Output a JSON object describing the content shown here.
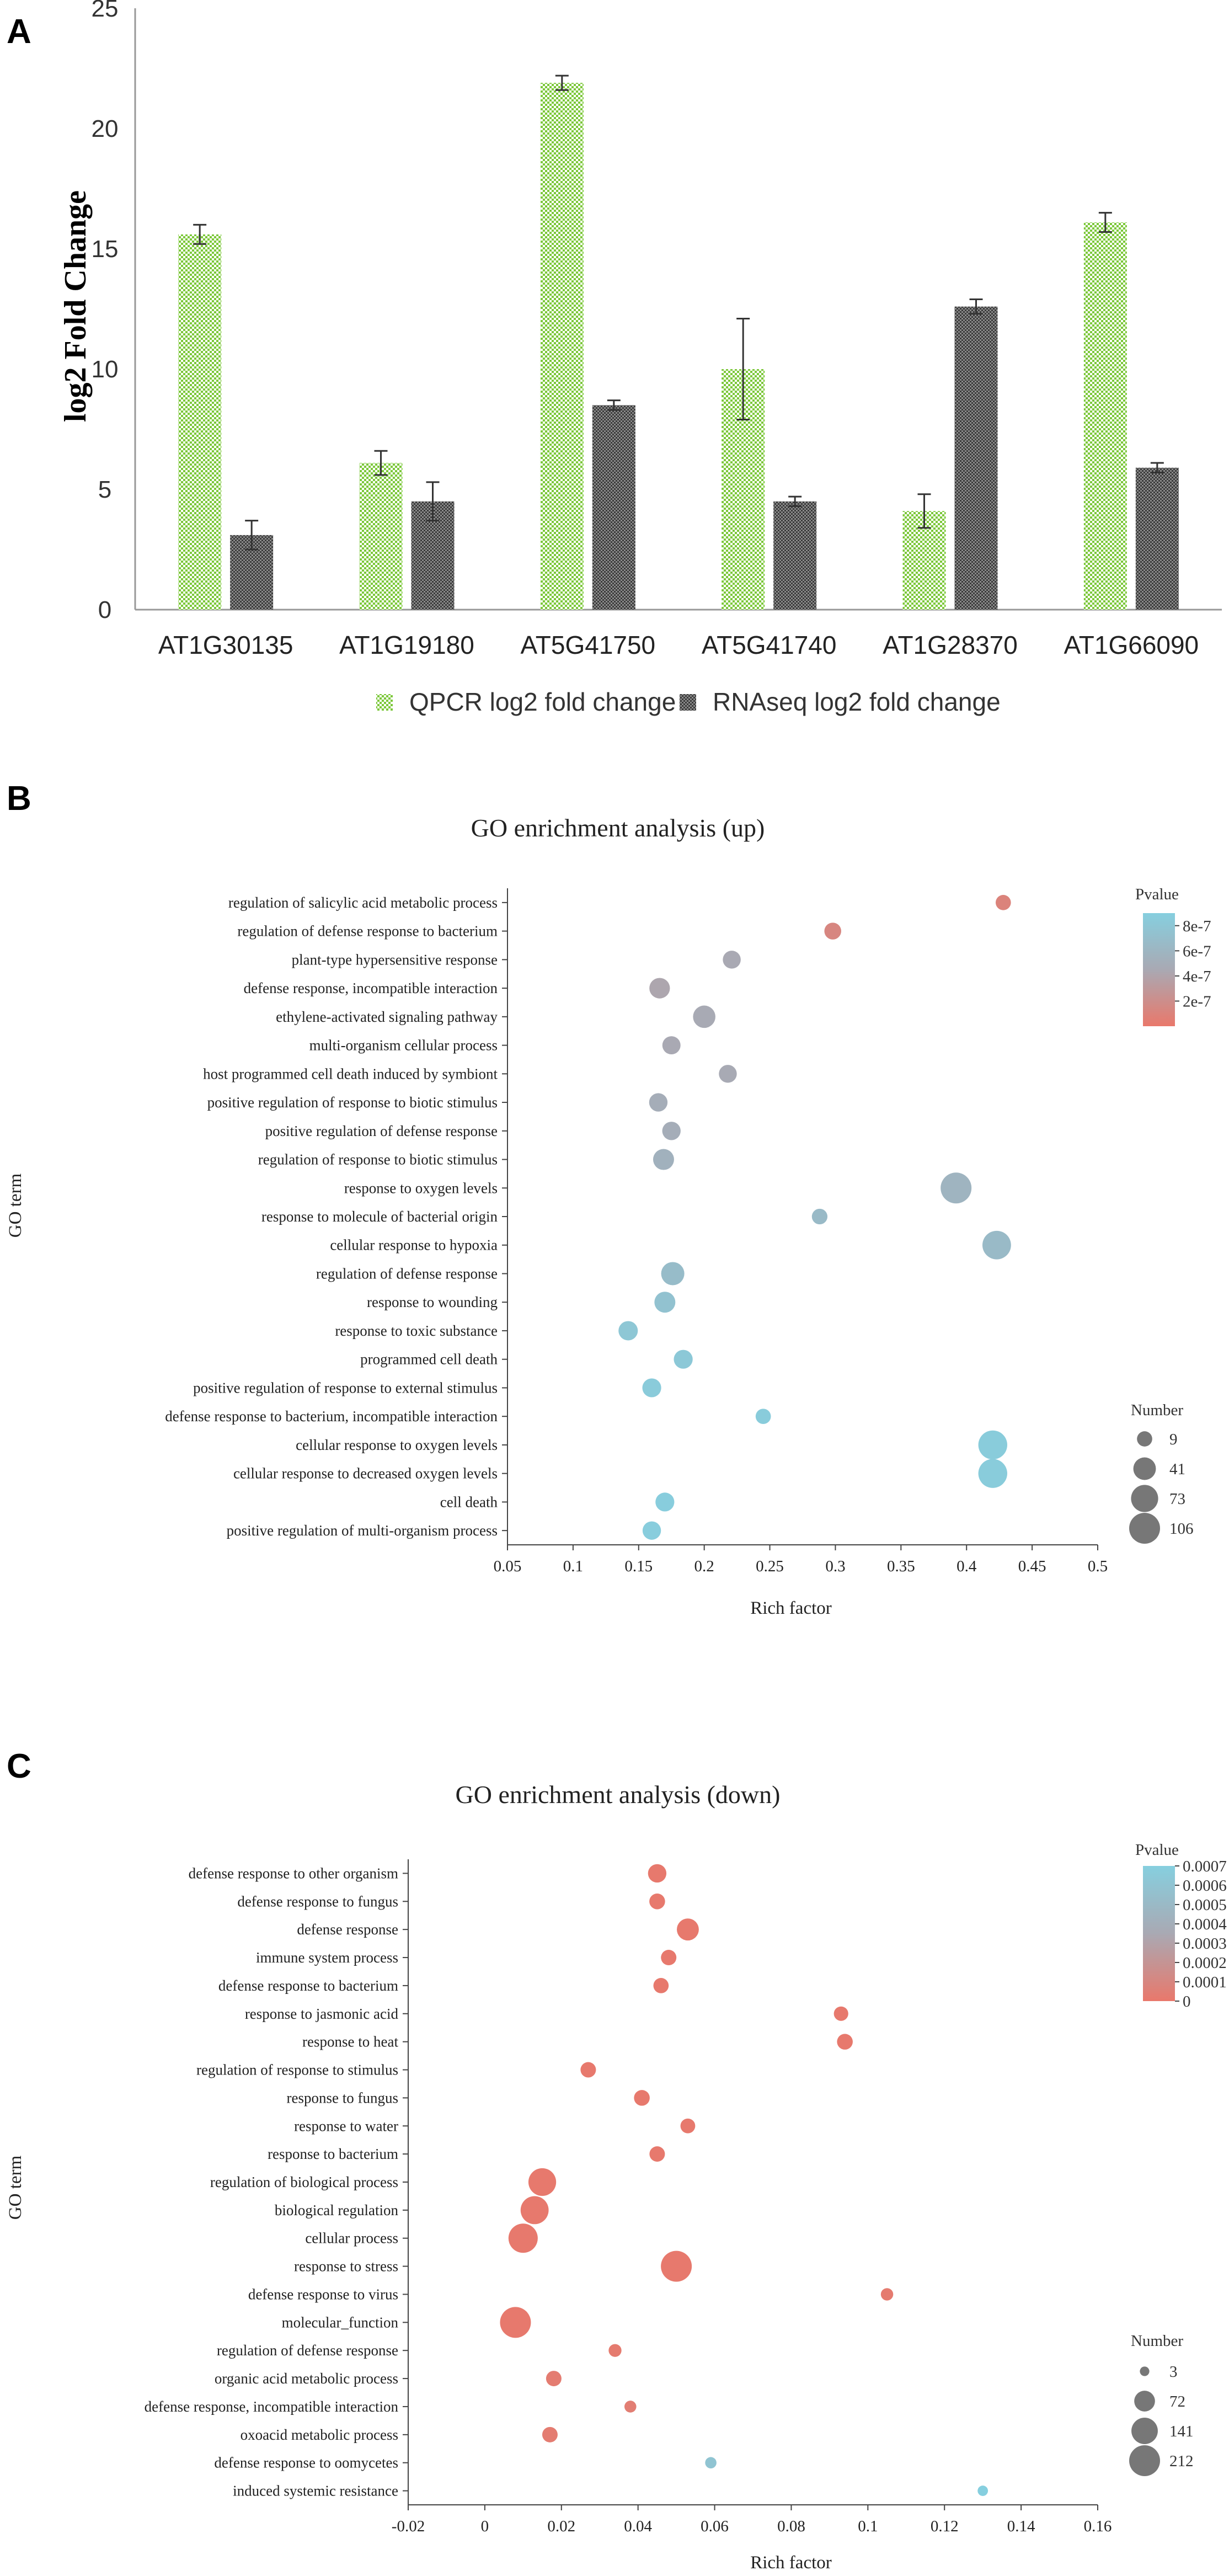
{
  "chart_data": [
    {
      "panel": "A",
      "type": "bar",
      "title": "",
      "ylabel": "log2 Fold Change",
      "xlabel": "",
      "ylim": [
        0,
        25
      ],
      "yticks": [
        0,
        5,
        10,
        15,
        20,
        25
      ],
      "categories": [
        "AT1G30135",
        "AT1G19180",
        "AT5G41750",
        "AT5G41740",
        "AT1G28370",
        "AT1G66090"
      ],
      "series": [
        {
          "name": "QPCR log2 fold change",
          "color": "#8fd14f",
          "values": [
            15.6,
            6.1,
            21.9,
            10.0,
            4.1,
            16.1
          ],
          "errors": [
            0.4,
            0.5,
            0.3,
            2.1,
            0.7,
            0.4
          ]
        },
        {
          "name": "RNAseq log2 fold change",
          "color": "#555555",
          "values": [
            3.1,
            4.5,
            8.5,
            4.5,
            12.6,
            5.9
          ],
          "errors": [
            0.6,
            0.8,
            0.2,
            0.2,
            0.3,
            0.2
          ]
        }
      ]
    },
    {
      "panel": "B",
      "type": "scatter",
      "title": "GO enrichment analysis (up)",
      "xlabel": "Rich factor",
      "ylabel": "GO term",
      "xlim": [
        0.05,
        0.5
      ],
      "xticks": [
        "0.05",
        "0.1",
        "0.15",
        "0.2",
        "0.25",
        "0.3",
        "0.35",
        "0.4",
        "0.45",
        "0.5"
      ],
      "color_scale": {
        "title": "Pvalue",
        "min": 0,
        "max": 9e-07,
        "low_color": "#e9786b",
        "mid_color": "#a9a9b3",
        "high_color": "#86cfdf",
        "tick_labels": [
          "8e-7",
          "6e-7",
          "4e-7",
          "2e-7"
        ],
        "tick_values": [
          8e-07,
          6e-07,
          4e-07,
          2e-07
        ]
      },
      "size_scale": {
        "title": "Number",
        "labels": [
          "9",
          "41",
          "73",
          "106"
        ],
        "values": [
          9,
          41,
          73,
          106
        ]
      },
      "points": [
        {
          "term": "regulation of salicylic acid metabolic process",
          "x": 0.428,
          "size": 9,
          "p": 1e-07
        },
        {
          "term": "regulation of defense response to bacterium",
          "x": 0.298,
          "size": 14,
          "p": 1.3e-07
        },
        {
          "term": "plant-type hypersensitive response",
          "x": 0.221,
          "size": 18,
          "p": 4.5e-07
        },
        {
          "term": "defense response, incompatible interaction",
          "x": 0.166,
          "size": 30,
          "p": 4.2e-07
        },
        {
          "term": "ethylene-activated signaling pathway",
          "x": 0.2,
          "size": 40,
          "p": 4.6e-07
        },
        {
          "term": "multi-organism cellular process",
          "x": 0.175,
          "size": 19,
          "p": 4.5e-07
        },
        {
          "term": "host programmed cell death induced by symbiont",
          "x": 0.218,
          "size": 18,
          "p": 4.6e-07
        },
        {
          "term": "positive regulation of response to biotic stimulus",
          "x": 0.165,
          "size": 20,
          "p": 5e-07
        },
        {
          "term": "positive regulation of defense response",
          "x": 0.175,
          "size": 20,
          "p": 5e-07
        },
        {
          "term": "regulation of response to biotic stimulus",
          "x": 0.169,
          "size": 32,
          "p": 5.5e-07
        },
        {
          "term": "response to oxygen levels",
          "x": 0.392,
          "size": 106,
          "p": 5.8e-07
        },
        {
          "term": "response to molecule of bacterial origin",
          "x": 0.288,
          "size": 10,
          "p": 6.5e-07
        },
        {
          "term": "cellular response to hypoxia",
          "x": 0.423,
          "size": 85,
          "p": 6.5e-07
        },
        {
          "term": "regulation of defense response",
          "x": 0.176,
          "size": 45,
          "p": 6.8e-07
        },
        {
          "term": "response to wounding",
          "x": 0.17,
          "size": 32,
          "p": 7.5e-07
        },
        {
          "term": "response to toxic substance",
          "x": 0.142,
          "size": 24,
          "p": 8e-07
        },
        {
          "term": "programmed cell death",
          "x": 0.184,
          "size": 22,
          "p": 8.2e-07
        },
        {
          "term": "positive regulation of response to external stimulus",
          "x": 0.16,
          "size": 22,
          "p": 8.5e-07
        },
        {
          "term": "defense response to bacterium, incompatible interaction",
          "x": 0.245,
          "size": 9,
          "p": 8.6e-07
        },
        {
          "term": "cellular response to oxygen levels",
          "x": 0.42,
          "size": 88,
          "p": 8.6e-07
        },
        {
          "term": "cellular response to decreased oxygen levels",
          "x": 0.42,
          "size": 88,
          "p": 8.6e-07
        },
        {
          "term": "cell death",
          "x": 0.17,
          "size": 22,
          "p": 8.8e-07
        },
        {
          "term": "positive regulation of multi-organism process",
          "x": 0.16,
          "size": 20,
          "p": 8.8e-07
        }
      ]
    },
    {
      "panel": "C",
      "type": "scatter",
      "title": "GO enrichment analysis (down)",
      "xlabel": "Rich factor",
      "ylabel": "GO term",
      "xlim": [
        -0.02,
        0.16
      ],
      "xticks": [
        "-0.02",
        "0",
        "0.02",
        "0.04",
        "0.06",
        "0.08",
        "0.1",
        "0.12",
        "0.14",
        "0.16"
      ],
      "color_scale": {
        "title": "Pvalue",
        "min": 0,
        "max": 0.0007,
        "low_color": "#e9786b",
        "mid_color": "#a9a9b3",
        "high_color": "#86cfdf",
        "tick_labels": [
          "0.0007",
          "0.0006",
          "0.0005",
          "0.0004",
          "0.0003",
          "0.0002",
          "0.0001",
          "0"
        ],
        "tick_values": [
          0.0007,
          0.0006,
          0.0005,
          0.0004,
          0.0003,
          0.0002,
          0.0001,
          0
        ]
      },
      "size_scale": {
        "title": "Number",
        "labels": [
          "3",
          "72",
          "141",
          "212"
        ],
        "values": [
          3,
          72,
          141,
          212
        ]
      },
      "points": [
        {
          "term": "defense response to other organism",
          "x": 0.045,
          "size": 50,
          "p": 1e-05
        },
        {
          "term": "defense response to fungus",
          "x": 0.045,
          "size": 30,
          "p": 1e-05
        },
        {
          "term": "defense response",
          "x": 0.053,
          "size": 85,
          "p": 1e-05
        },
        {
          "term": "immune system process",
          "x": 0.048,
          "size": 28,
          "p": 1e-05
        },
        {
          "term": "defense response to bacterium",
          "x": 0.046,
          "size": 27,
          "p": 1e-05
        },
        {
          "term": "response to jasmonic acid",
          "x": 0.093,
          "size": 22,
          "p": 1e-05
        },
        {
          "term": "response to heat",
          "x": 0.094,
          "size": 30,
          "p": 1e-05
        },
        {
          "term": "regulation of response to stimulus",
          "x": 0.027,
          "size": 28,
          "p": 1e-05
        },
        {
          "term": "response to fungus",
          "x": 0.041,
          "size": 30,
          "p": 1e-05
        },
        {
          "term": "response to water",
          "x": 0.053,
          "size": 24,
          "p": 1e-05
        },
        {
          "term": "response to bacterium",
          "x": 0.045,
          "size": 28,
          "p": 1e-05
        },
        {
          "term": "regulation of biological process",
          "x": 0.015,
          "size": 160,
          "p": 1e-05
        },
        {
          "term": "biological regulation",
          "x": 0.013,
          "size": 165,
          "p": 1e-05
        },
        {
          "term": "cellular process",
          "x": 0.01,
          "size": 185,
          "p": 1e-05
        },
        {
          "term": "response to stress",
          "x": 0.05,
          "size": 212,
          "p": 1e-05
        },
        {
          "term": "defense response to virus",
          "x": 0.105,
          "size": 12,
          "p": 2e-05
        },
        {
          "term": "molecular_function",
          "x": 0.008,
          "size": 212,
          "p": 1e-05
        },
        {
          "term": "regulation of defense response",
          "x": 0.034,
          "size": 14,
          "p": 2e-05
        },
        {
          "term": "organic acid metabolic process",
          "x": 0.018,
          "size": 28,
          "p": 3e-05
        },
        {
          "term": "defense response, incompatible interaction",
          "x": 0.038,
          "size": 10,
          "p": 4e-05
        },
        {
          "term": "oxoacid metabolic process",
          "x": 0.017,
          "size": 28,
          "p": 3e-05
        },
        {
          "term": "defense response to oomycetes",
          "x": 0.059,
          "size": 8,
          "p": 0.0006
        },
        {
          "term": "induced systemic resistance",
          "x": 0.13,
          "size": 5,
          "p": 0.0007
        }
      ]
    }
  ]
}
